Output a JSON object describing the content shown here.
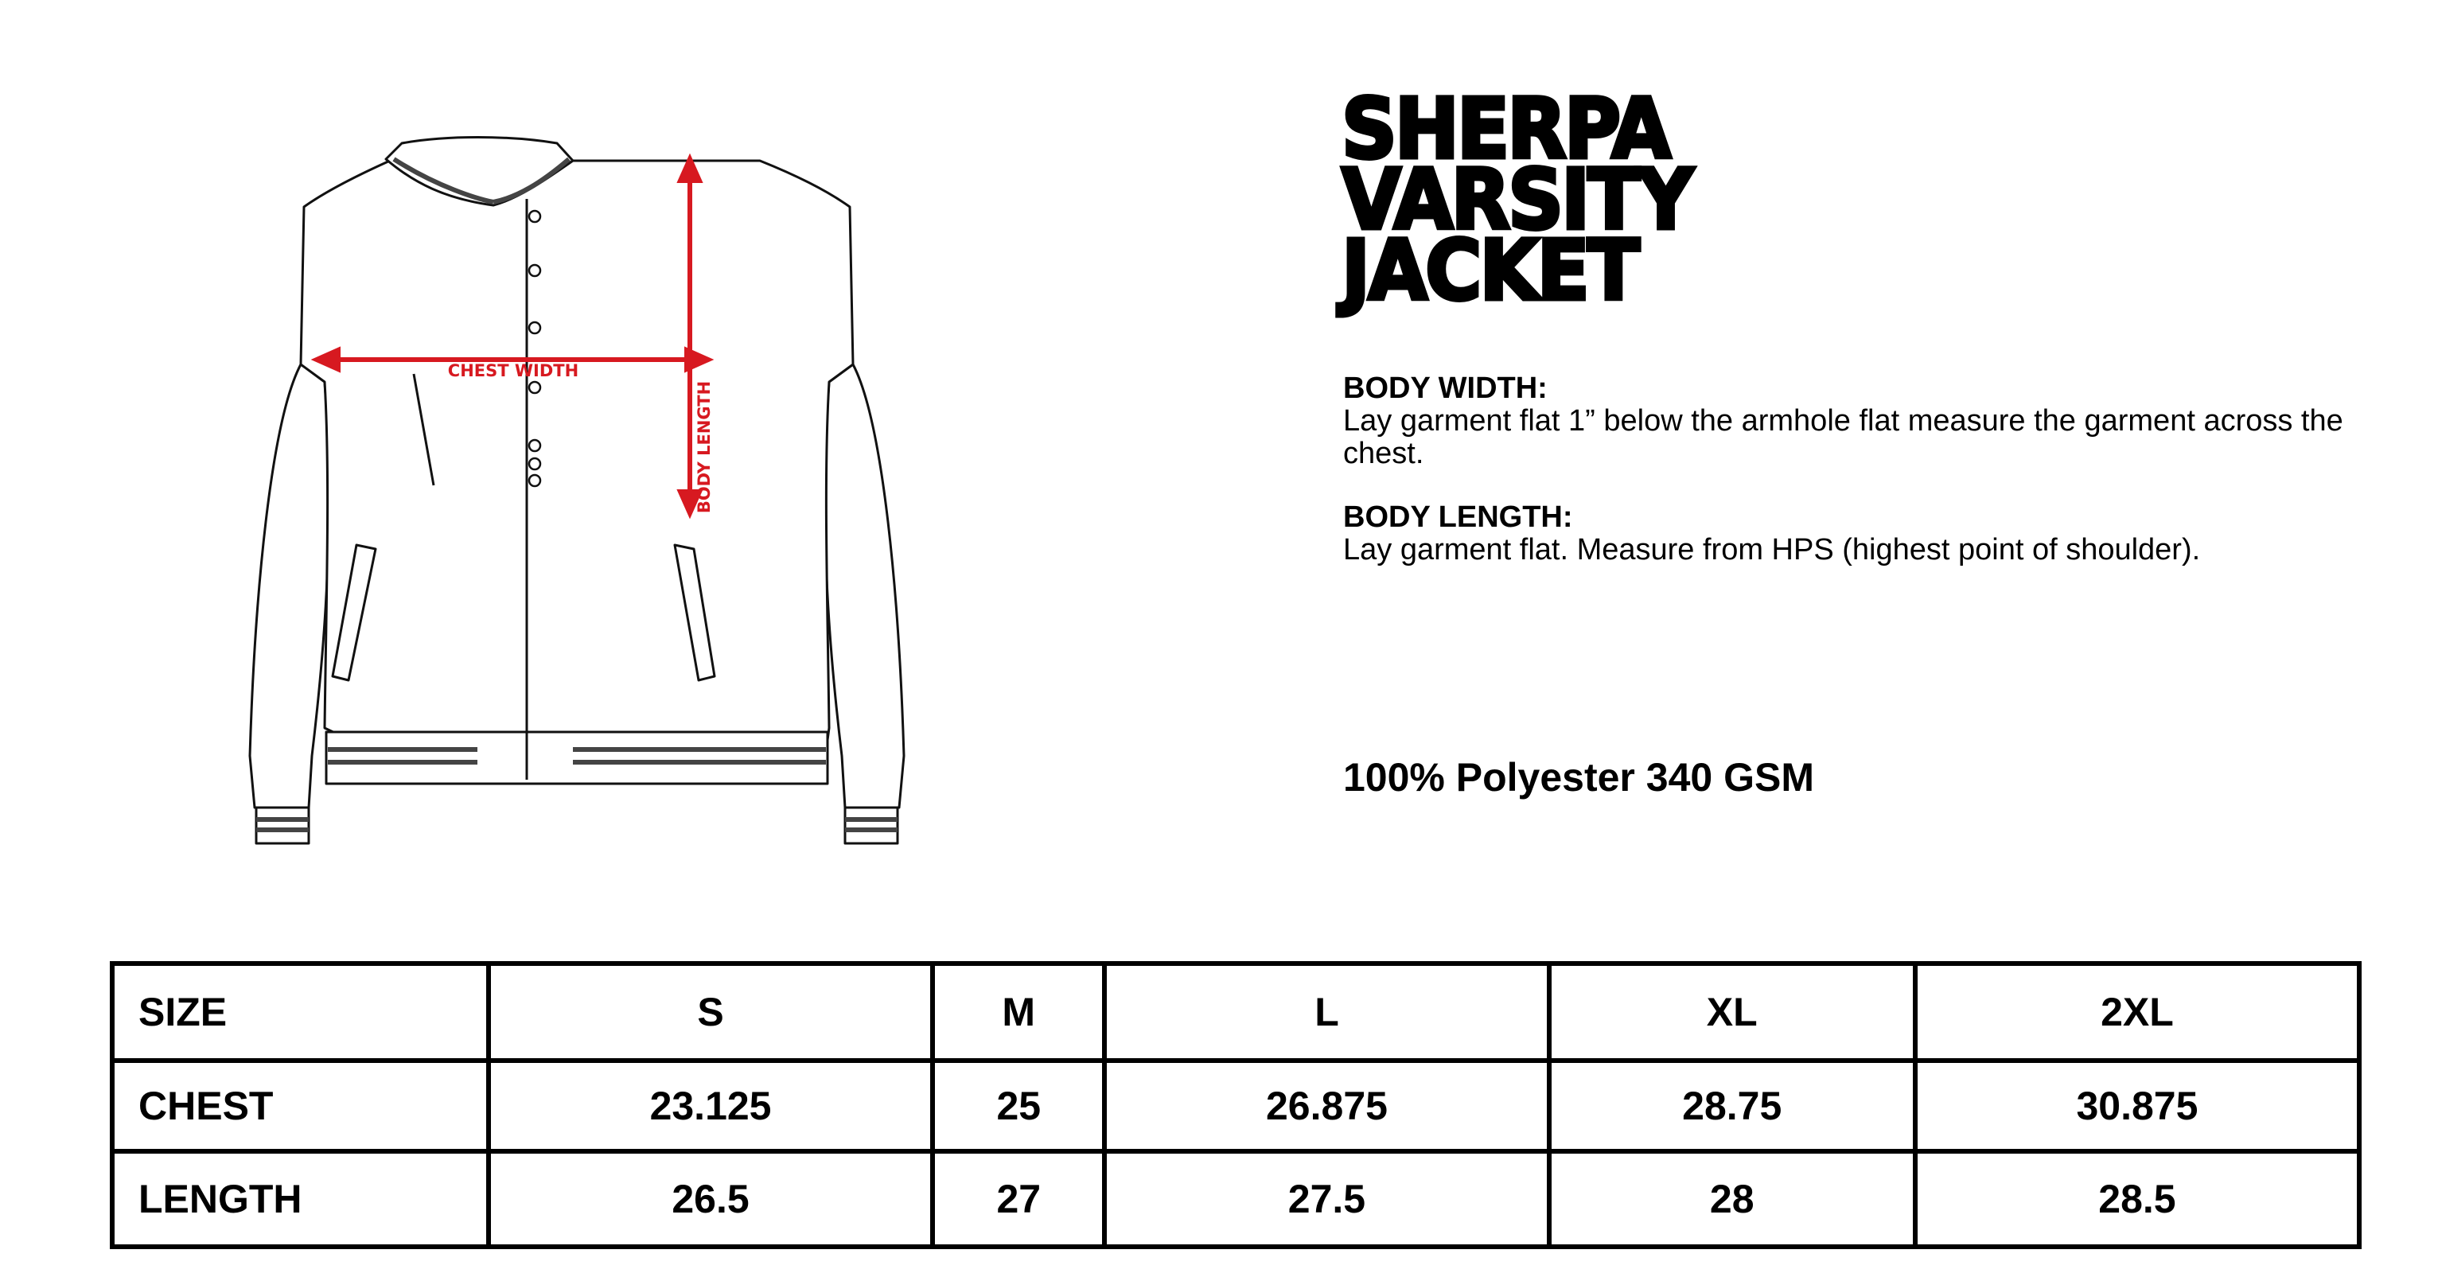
{
  "product": {
    "title_lines": [
      "SHERPA",
      "VARSITY",
      "JACKET"
    ]
  },
  "diagram": {
    "chest_label": "CHEST WIDTH",
    "length_label": "BODY LENGTH",
    "arrow_color": "#d71920"
  },
  "specs": [
    {
      "heading": "BODY WIDTH:",
      "text": "Lay garment flat 1” below the armhole flat measure the garment across the chest."
    },
    {
      "heading": "BODY LENGTH:",
      "text": "Lay garment flat. Measure from HPS (highest point of shoulder)."
    }
  ],
  "fabric": "100% Polyester 340 GSM",
  "size_table": {
    "header": [
      "SIZE",
      "S",
      "M",
      "L",
      "XL",
      "2XL"
    ],
    "rows": [
      [
        "CHEST",
        "23.125",
        "25",
        "26.875",
        "28.75",
        "30.875"
      ],
      [
        "LENGTH",
        "26.5",
        "27",
        "27.5",
        "28",
        "28.5"
      ]
    ]
  }
}
